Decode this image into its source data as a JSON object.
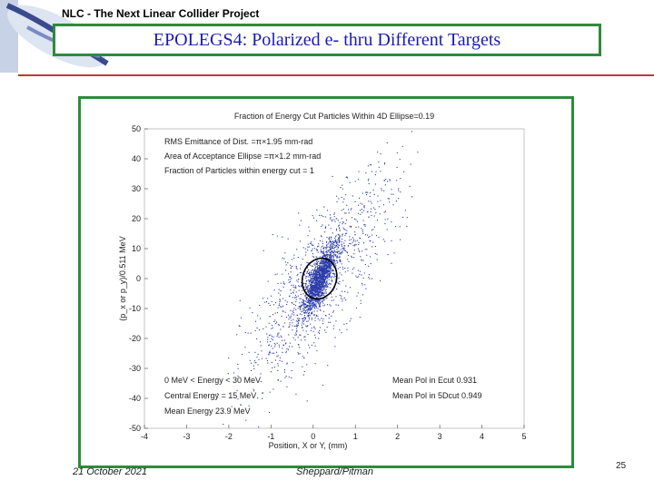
{
  "header": {
    "project": "NLC - The Next Linear Collider Project",
    "title": "EPOLEGS4: Polarized e- thru Different Targets"
  },
  "footer": {
    "date": "21 October 2021",
    "authors": "Sheppard/Pitman",
    "page_number": "25"
  },
  "colors": {
    "title_text": "#1a1ab0",
    "frame": "#2e8b3a",
    "rule": "#c0392b",
    "points": "#2a3aa8",
    "ellipse": "#000000"
  },
  "chart_data": {
    "type": "scatter",
    "title": "Fraction of Energy Cut Particles Within 4D Ellipse=0.19",
    "xlabel": "Position, X or Y, (mm)",
    "ylabel": "(p_x or p_y)/0.511 MeV",
    "xlim": [
      -4,
      5
    ],
    "ylim": [
      -50,
      50
    ],
    "xticks": [
      -4,
      -3,
      -2,
      -1,
      0,
      1,
      2,
      3,
      4,
      5
    ],
    "yticks": [
      -50,
      -40,
      -30,
      -20,
      -10,
      0,
      10,
      20,
      30,
      40,
      50
    ],
    "grid": false,
    "series": [
      {
        "kind": "particle cloud",
        "center": [
          0.15,
          0
        ],
        "core_spread": [
          0.2,
          6
        ],
        "halo_spread": [
          0.9,
          18
        ],
        "correlation": 0.8
      },
      {
        "kind": "acceptance ellipse",
        "center": [
          0.15,
          0
        ],
        "semi_axes": [
          0.25,
          6
        ],
        "tilt": 0.8
      }
    ],
    "annotations_top_left": [
      "RMS Emittance of Dist. =π×1.95 mm-rad",
      "Area of Acceptance Ellipse =π×1.2 mm-rad",
      "Fraction of Particles within energy cut = 1"
    ],
    "annotations_bottom_left": [
      "0 MeV < Energy < 30 MeV",
      "Central Energy = 15 MeV",
      "Mean Energy 23.9 MeV"
    ],
    "annotations_bottom_right": [
      "Mean Pol in Ecut 0.931",
      "Mean Pol in 5Dcut 0.949"
    ]
  }
}
